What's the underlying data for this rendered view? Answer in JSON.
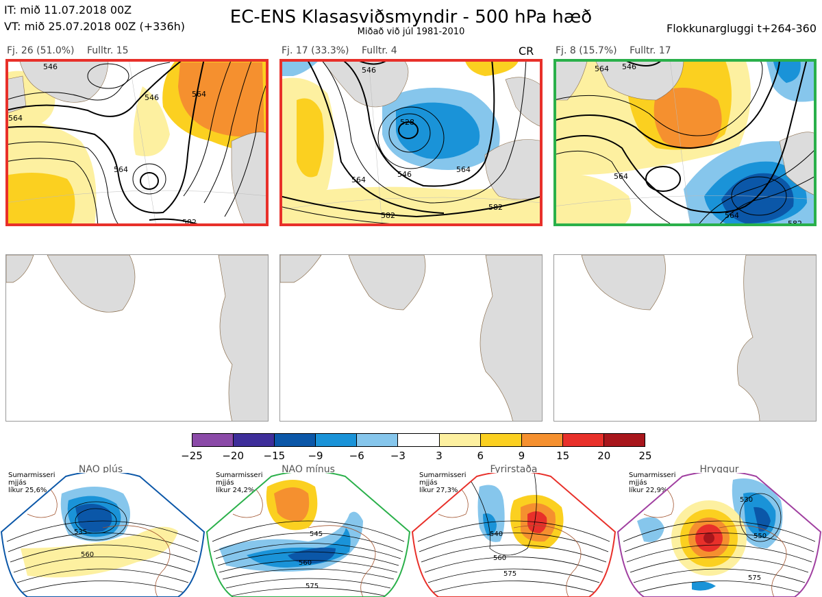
{
  "header": {
    "line1": "IT: mið 11.07.2018 00Z",
    "line2": "VT: mið 25.07.2018 00Z  (+336h)",
    "title": "EC-ENS Klasasviðsmyndir - 500 hPa hæð",
    "subtitle": "Miðað við júl 1981-2010",
    "window": "Flokkunargluggi t+264-360"
  },
  "panels": [
    {
      "freq": "Fj. 26 (51.0%)",
      "rep": "Fulltr. 15",
      "tag": "",
      "border": "#e8302a"
    },
    {
      "freq": "Fj. 17 (33.3%)",
      "rep": "Fulltr. 4",
      "tag": "CR",
      "border": "#e8302a"
    },
    {
      "freq": "Fj. 8 (15.7%)",
      "rep": "Fulltr. 17",
      "tag": "",
      "border": "#2ab04a"
    }
  ],
  "contours": {
    "p1": [
      "546",
      "564",
      "564",
      "564",
      "582",
      "546"
    ],
    "p2": [
      "546",
      "528",
      "546",
      "564",
      "564",
      "582",
      "582"
    ],
    "p3": [
      "546",
      "564",
      "564",
      "564",
      "582"
    ]
  },
  "colorbar": {
    "labels": [
      "−25",
      "−20",
      "−15",
      "−9",
      "−6",
      "−3",
      "3",
      "6",
      "9",
      "15",
      "20",
      "25"
    ],
    "colors": [
      "#8b4aa8",
      "#3e2e9a",
      "#0b57a8",
      "#1a93d8",
      "#86c6ec",
      "#ffffff",
      "#fdf0a0",
      "#fbd020",
      "#f5902f",
      "#e8302a",
      "#a8161c"
    ]
  },
  "regimes": [
    {
      "name": "NAO plús",
      "season": "Sumarmisseri",
      "smooth": "mjjás",
      "prob": "líkur 25,6%",
      "color": "#0b57a8",
      "labels": [
        "535",
        "560"
      ]
    },
    {
      "name": "NAO mínus",
      "season": "Sumarmisseri",
      "smooth": "mjjás",
      "prob": "líkur 24,2%",
      "color": "#2ab04a",
      "labels": [
        "545",
        "560",
        "575"
      ]
    },
    {
      "name": "Fyrirstaða",
      "season": "Sumarmisseri",
      "smooth": "mjjás",
      "prob": "líkur 27,3%",
      "color": "#e8302a",
      "labels": [
        "540",
        "560",
        "575"
      ]
    },
    {
      "name": "Hryggur",
      "season": "Sumarmisseri",
      "smooth": "mjjás",
      "prob": "líkur 22,9%",
      "color": "#a03fa0",
      "dot_color": "#ee82ee",
      "labels": [
        "530",
        "550",
        "575"
      ]
    }
  ]
}
